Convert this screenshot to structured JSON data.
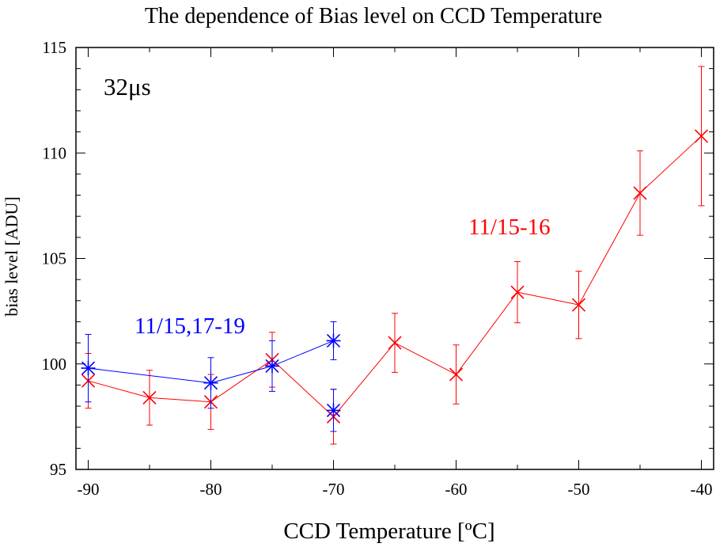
{
  "chart_data": {
    "type": "scatter",
    "title": "The dependence of Bias level on CCD Temperature",
    "xlabel": "CCD Temperature [ºC]",
    "ylabel": "bias level [ADU]",
    "xlim": [
      -91,
      -39
    ],
    "ylim": [
      95,
      115
    ],
    "x_ticks": [
      "-90",
      "-80",
      "-70",
      "-60",
      "-50",
      "-40"
    ],
    "x_tick_values": [
      -90,
      -80,
      -70,
      -60,
      -50,
      -40
    ],
    "y_ticks": [
      "95",
      "100",
      "105",
      "110",
      "115"
    ],
    "y_tick_values": [
      95,
      100,
      105,
      110,
      115
    ],
    "annotation": "32μs",
    "series": [
      {
        "name": "11/15-16",
        "color": "#ff0000",
        "marker": "x",
        "points": [
          {
            "x": -90,
            "y": 99.2,
            "err": 1.3
          },
          {
            "x": -85,
            "y": 98.4,
            "err": 1.3
          },
          {
            "x": -80,
            "y": 98.2,
            "err": 1.3
          },
          {
            "x": -75,
            "y": 100.2,
            "err": 1.3
          },
          {
            "x": -70,
            "y": 97.5,
            "err": 1.3
          },
          {
            "x": -65,
            "y": 101.0,
            "err": 1.4
          },
          {
            "x": -60,
            "y": 99.5,
            "err": 1.4
          },
          {
            "x": -55,
            "y": 103.4,
            "err": 1.45
          },
          {
            "x": -50,
            "y": 102.8,
            "err": 1.6
          },
          {
            "x": -45,
            "y": 108.1,
            "err": 2.0
          },
          {
            "x": -40,
            "y": 110.8,
            "err": 3.3
          }
        ]
      },
      {
        "name": "11/15,17-19",
        "color": "#0000ff",
        "marker": "asterisk",
        "points": [
          {
            "x": -90,
            "y": 99.8,
            "err": 1.6
          },
          {
            "x": -80,
            "y": 99.1,
            "err": 1.2
          },
          {
            "x": -75,
            "y": 99.9,
            "err": 1.2
          },
          {
            "x": -70,
            "y": 101.1,
            "err": 0.9
          },
          {
            "x": -70,
            "y": 97.8,
            "err": 1.0
          }
        ],
        "segments": [
          [
            0,
            1
          ],
          [
            1,
            2
          ],
          [
            2,
            3
          ]
        ]
      }
    ]
  }
}
